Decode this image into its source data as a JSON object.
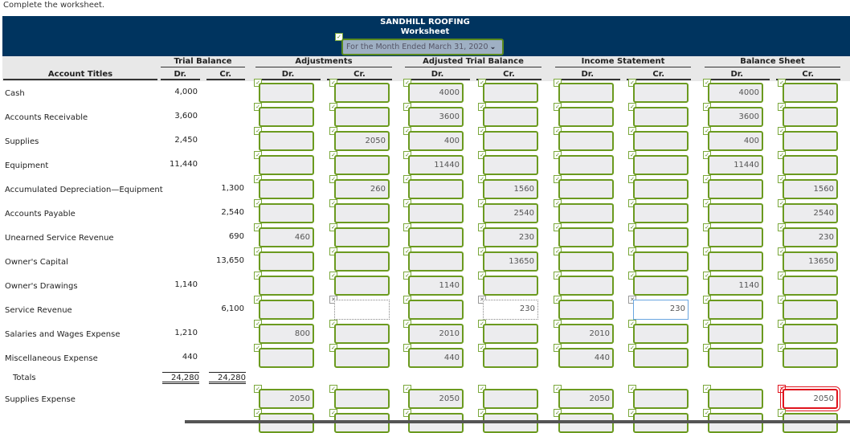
{
  "instruction": "Complete the worksheet.",
  "header": {
    "company": "SANDHILL ROOFING",
    "title": "Worksheet",
    "period": "For the Month Ended March 31, 2020"
  },
  "columns": {
    "account_titles": "Account Titles",
    "groups": [
      "Trial Balance",
      "Adjustments",
      "Adjusted Trial Balance",
      "Income Statement",
      "Balance Sheet"
    ],
    "dr": "Dr.",
    "cr": "Cr."
  },
  "colors": {
    "banner": "#00345f",
    "correct": "#6b9a1f",
    "wrong": "#e0141e"
  },
  "rows": [
    {
      "account": "Cash",
      "tb_dr": "4,000",
      "tb_cr": "",
      "inputs": [
        "",
        "",
        "4000",
        "",
        "",
        "",
        "4000",
        ""
      ]
    },
    {
      "account": "Accounts Receivable",
      "tb_dr": "3,600",
      "tb_cr": "",
      "inputs": [
        "",
        "",
        "3600",
        "",
        "",
        "",
        "3600",
        ""
      ]
    },
    {
      "account": "Supplies",
      "tb_dr": "2,450",
      "tb_cr": "",
      "inputs": [
        "",
        "2050",
        "400",
        "",
        "",
        "",
        "400",
        ""
      ]
    },
    {
      "account": "Equipment",
      "tb_dr": "11,440",
      "tb_cr": "",
      "inputs": [
        "",
        "",
        "11440",
        "",
        "",
        "",
        "11440",
        ""
      ]
    },
    {
      "account": "Accumulated Depreciation—Equipment",
      "tb_dr": "",
      "tb_cr": "1,300",
      "inputs": [
        "",
        "260",
        "",
        "1560",
        "",
        "",
        "",
        "1560"
      ]
    },
    {
      "account": "Accounts Payable",
      "tb_dr": "",
      "tb_cr": "2,540",
      "inputs": [
        "",
        "",
        "",
        "2540",
        "",
        "",
        "",
        "2540"
      ]
    },
    {
      "account": "Unearned Service Revenue",
      "tb_dr": "",
      "tb_cr": "690",
      "inputs": [
        "460",
        "",
        "",
        "230",
        "",
        "",
        "",
        "230"
      ]
    },
    {
      "account": "Owner's Capital",
      "tb_dr": "",
      "tb_cr": "13,650",
      "inputs": [
        "",
        "",
        "",
        "13650",
        "",
        "",
        "",
        "13650"
      ]
    },
    {
      "account": "Owner's Drawings",
      "tb_dr": "1,140",
      "tb_cr": "",
      "inputs": [
        "",
        "",
        "1140",
        "",
        "",
        "",
        "1140",
        ""
      ]
    },
    {
      "account": "Service Revenue",
      "tb_dr": "",
      "tb_cr": "6,100",
      "inputs": [
        "",
        "",
        "",
        "230",
        "",
        "230",
        "",
        ""
      ],
      "states": [
        "ok",
        "neutral",
        "ok",
        "neutral",
        "ok",
        "focus",
        "ok",
        "ok"
      ]
    },
    {
      "account": "Salaries and Wages Expense",
      "tb_dr": "1,210",
      "tb_cr": "",
      "inputs": [
        "800",
        "",
        "2010",
        "",
        "2010",
        "",
        "",
        ""
      ]
    },
    {
      "account": "Miscellaneous Expense",
      "tb_dr": "440",
      "tb_cr": "",
      "inputs": [
        "",
        "",
        "440",
        "",
        "440",
        "",
        "",
        ""
      ]
    },
    {
      "account": "Totals",
      "tb_dr": "24,280",
      "tb_cr": "24,280",
      "totals": true
    },
    {
      "account": "Supplies Expense",
      "tb_dr": "",
      "tb_cr": "",
      "inputs": [
        "2050",
        "",
        "2050",
        "",
        "2050",
        "",
        "",
        "2050"
      ],
      "states": [
        "ok",
        "ok",
        "ok",
        "ok",
        "ok",
        "ok",
        "ok",
        "wrong"
      ]
    },
    {
      "account": "",
      "tb_dr": "",
      "tb_cr": "",
      "inputs": [
        "",
        "",
        "",
        "",
        "",
        "",
        "",
        ""
      ]
    }
  ]
}
